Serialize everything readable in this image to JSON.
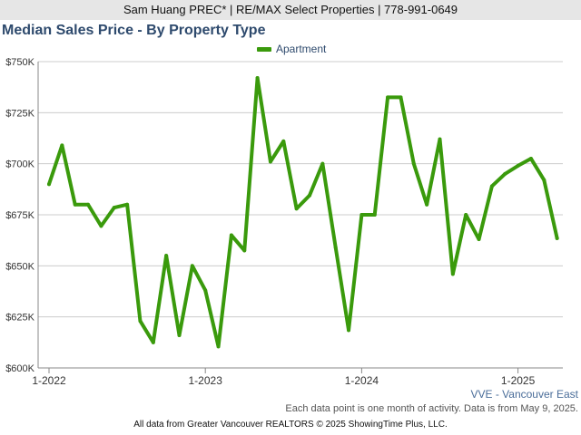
{
  "header": {
    "banner": "Sam Huang PREC* | RE/MAX Select Properties | 778-991-0649"
  },
  "colors": {
    "series": "#3a9a0c",
    "title": "#2e4a6d",
    "grid": "#cccccc",
    "banner_bg": "#e6e6e6"
  },
  "chart_data": {
    "type": "line",
    "title": "Median Sales Price - By Property Type",
    "legend_position": "top-center",
    "grid": true,
    "series": [
      {
        "name": "Apartment",
        "x": [
          "2022-01",
          "2022-02",
          "2022-03",
          "2022-04",
          "2022-05",
          "2022-06",
          "2022-07",
          "2022-08",
          "2022-09",
          "2022-10",
          "2022-11",
          "2022-12",
          "2023-01",
          "2023-02",
          "2023-03",
          "2023-04",
          "2023-05",
          "2023-06",
          "2023-07",
          "2023-08",
          "2023-09",
          "2023-10",
          "2023-11",
          "2023-12",
          "2024-01",
          "2024-02",
          "2024-03",
          "2024-04",
          "2024-05",
          "2024-06",
          "2024-07",
          "2024-08",
          "2024-09",
          "2024-10",
          "2024-11",
          "2024-12",
          "2025-01",
          "2025-02",
          "2025-03",
          "2025-04"
        ],
        "values": [
          690000,
          709000,
          680000,
          680000,
          669500,
          678500,
          680000,
          623000,
          612500,
          655000,
          616000,
          650000,
          638000,
          610500,
          665000,
          657500,
          742000,
          701000,
          711000,
          678000,
          684500,
          700000,
          659000,
          618500,
          675000,
          675000,
          732500,
          732500,
          700000,
          680000,
          712000,
          646000,
          675000,
          663000,
          689000,
          695000,
          699000,
          702500,
          692000,
          663500
        ]
      }
    ],
    "ylim": [
      600000,
      750000
    ],
    "y_ticks": [
      600000,
      625000,
      650000,
      675000,
      700000,
      725000,
      750000
    ],
    "y_tick_labels": [
      "$600K",
      "$625K",
      "$650K",
      "$675K",
      "$700K",
      "$725K",
      "$750K"
    ],
    "x_tick_labels": [
      {
        "at": "2022-01",
        "label": "1-2022"
      },
      {
        "at": "2023-01",
        "label": "1-2023"
      },
      {
        "at": "2024-01",
        "label": "1-2024"
      },
      {
        "at": "2025-01",
        "label": "1-2025"
      }
    ]
  },
  "footer": {
    "region": "VVE - Vancouver East",
    "note": "Each data point is one month of activity. Data is from May 9, 2025.",
    "copyright": "All data from Greater Vancouver REALTORS © 2025 ShowingTime Plus, LLC."
  }
}
